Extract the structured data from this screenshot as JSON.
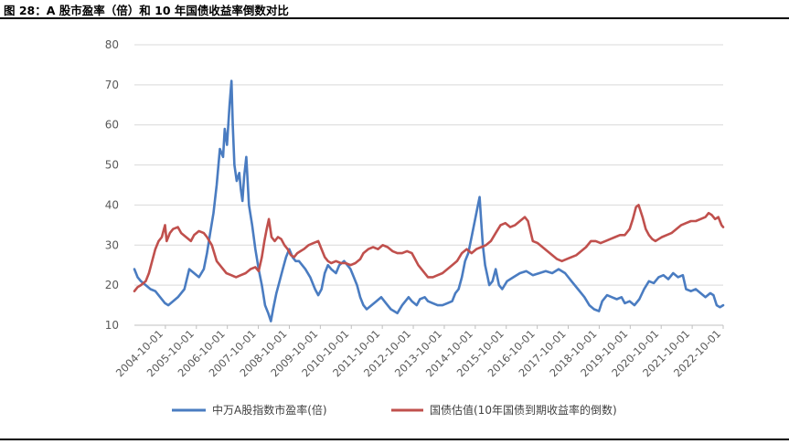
{
  "figure": {
    "title": "图 28：A 股市盈率（倍）和 10 年国债收益率倒数对比"
  },
  "colors": {
    "series1": "#4a7cc1",
    "series2": "#c0504d",
    "grid": "#d9d9d9",
    "axis": "#bfbfbf"
  },
  "chart_data": {
    "type": "line",
    "title": "",
    "xlabel": "",
    "ylabel": "",
    "ylim": [
      10,
      80
    ],
    "yticks": [
      10,
      20,
      30,
      40,
      50,
      60,
      70,
      80
    ],
    "grid": true,
    "legend": "bottom",
    "xticks": [
      "2004-10-01",
      "2005-10-01",
      "2006-10-01",
      "2007-10-01",
      "2008-10-01",
      "2009-10-01",
      "2010-10-01",
      "2011-10-01",
      "2012-10-01",
      "2013-10-01",
      "2014-10-01",
      "2015-10-01",
      "2016-10-01",
      "2017-10-01",
      "2018-10-01",
      "2019-10-01",
      "2020-10-01",
      "2021-10-01",
      "2022-10-01"
    ],
    "xrange": [
      2004.75,
      2023.0
    ],
    "series": [
      {
        "name": "中万A股指数市盈率(倍)",
        "color": "#4a7cc1",
        "points": [
          [
            2004.75,
            24
          ],
          [
            2004.85,
            22
          ],
          [
            2004.95,
            21
          ],
          [
            2005.1,
            20
          ],
          [
            2005.25,
            19
          ],
          [
            2005.4,
            18.5
          ],
          [
            2005.55,
            17
          ],
          [
            2005.7,
            15.5
          ],
          [
            2005.8,
            15
          ],
          [
            2005.95,
            16
          ],
          [
            2006.1,
            17
          ],
          [
            2006.3,
            19
          ],
          [
            2006.45,
            24
          ],
          [
            2006.6,
            23
          ],
          [
            2006.75,
            22
          ],
          [
            2006.9,
            24
          ],
          [
            2007.0,
            28
          ],
          [
            2007.1,
            33
          ],
          [
            2007.2,
            38
          ],
          [
            2007.3,
            45
          ],
          [
            2007.4,
            54
          ],
          [
            2007.5,
            52
          ],
          [
            2007.55,
            59
          ],
          [
            2007.62,
            55
          ],
          [
            2007.7,
            65
          ],
          [
            2007.76,
            71
          ],
          [
            2007.8,
            60
          ],
          [
            2007.85,
            50
          ],
          [
            2007.92,
            46
          ],
          [
            2008.0,
            48
          ],
          [
            2008.05,
            44
          ],
          [
            2008.1,
            41
          ],
          [
            2008.15,
            47
          ],
          [
            2008.22,
            52
          ],
          [
            2008.3,
            40
          ],
          [
            2008.4,
            35
          ],
          [
            2008.5,
            29
          ],
          [
            2008.6,
            24
          ],
          [
            2008.7,
            20
          ],
          [
            2008.8,
            15
          ],
          [
            2008.9,
            13
          ],
          [
            2008.98,
            11
          ],
          [
            2009.05,
            14
          ],
          [
            2009.15,
            18
          ],
          [
            2009.25,
            21
          ],
          [
            2009.35,
            24
          ],
          [
            2009.45,
            27
          ],
          [
            2009.55,
            29
          ],
          [
            2009.65,
            27
          ],
          [
            2009.75,
            26
          ],
          [
            2009.85,
            26
          ],
          [
            2009.95,
            25
          ],
          [
            2010.05,
            24
          ],
          [
            2010.2,
            22
          ],
          [
            2010.35,
            19
          ],
          [
            2010.45,
            17.5
          ],
          [
            2010.55,
            19
          ],
          [
            2010.65,
            23
          ],
          [
            2010.75,
            25
          ],
          [
            2010.85,
            24
          ],
          [
            2011.0,
            23
          ],
          [
            2011.1,
            25
          ],
          [
            2011.25,
            26
          ],
          [
            2011.35,
            25
          ],
          [
            2011.45,
            24
          ],
          [
            2011.55,
            22
          ],
          [
            2011.65,
            20
          ],
          [
            2011.75,
            17
          ],
          [
            2011.85,
            15
          ],
          [
            2011.95,
            14
          ],
          [
            2012.1,
            15
          ],
          [
            2012.25,
            16
          ],
          [
            2012.4,
            17
          ],
          [
            2012.55,
            15.5
          ],
          [
            2012.7,
            14
          ],
          [
            2012.8,
            13.5
          ],
          [
            2012.9,
            13
          ],
          [
            2013.05,
            15
          ],
          [
            2013.15,
            16
          ],
          [
            2013.25,
            17
          ],
          [
            2013.35,
            16
          ],
          [
            2013.5,
            15
          ],
          [
            2013.6,
            16.5
          ],
          [
            2013.75,
            17
          ],
          [
            2013.85,
            16
          ],
          [
            2014.0,
            15.5
          ],
          [
            2014.15,
            15
          ],
          [
            2014.3,
            15
          ],
          [
            2014.45,
            15.5
          ],
          [
            2014.6,
            16
          ],
          [
            2014.7,
            18
          ],
          [
            2014.8,
            19
          ],
          [
            2014.9,
            22
          ],
          [
            2015.0,
            26
          ],
          [
            2015.1,
            28
          ],
          [
            2015.2,
            32
          ],
          [
            2015.3,
            36
          ],
          [
            2015.4,
            40
          ],
          [
            2015.45,
            42
          ],
          [
            2015.5,
            36
          ],
          [
            2015.55,
            30
          ],
          [
            2015.62,
            25
          ],
          [
            2015.7,
            22
          ],
          [
            2015.75,
            20
          ],
          [
            2015.85,
            21
          ],
          [
            2015.95,
            24
          ],
          [
            2016.05,
            20
          ],
          [
            2016.15,
            19
          ],
          [
            2016.3,
            21
          ],
          [
            2016.5,
            22
          ],
          [
            2016.7,
            23
          ],
          [
            2016.9,
            23.5
          ],
          [
            2017.1,
            22.5
          ],
          [
            2017.3,
            23
          ],
          [
            2017.5,
            23.5
          ],
          [
            2017.7,
            23
          ],
          [
            2017.9,
            24
          ],
          [
            2018.1,
            23
          ],
          [
            2018.3,
            21
          ],
          [
            2018.5,
            19
          ],
          [
            2018.7,
            17
          ],
          [
            2018.85,
            15
          ],
          [
            2019.0,
            14
          ],
          [
            2019.15,
            13.5
          ],
          [
            2019.25,
            16
          ],
          [
            2019.4,
            17.5
          ],
          [
            2019.55,
            17
          ],
          [
            2019.7,
            16.5
          ],
          [
            2019.85,
            17
          ],
          [
            2019.95,
            15.5
          ],
          [
            2020.1,
            16
          ],
          [
            2020.25,
            15
          ],
          [
            2020.4,
            16.5
          ],
          [
            2020.55,
            19
          ],
          [
            2020.7,
            21
          ],
          [
            2020.85,
            20.5
          ],
          [
            2021.0,
            22
          ],
          [
            2021.15,
            22.5
          ],
          [
            2021.3,
            21.5
          ],
          [
            2021.45,
            23
          ],
          [
            2021.6,
            22
          ],
          [
            2021.75,
            22.5
          ],
          [
            2021.85,
            19
          ],
          [
            2022.0,
            18.5
          ],
          [
            2022.15,
            19
          ],
          [
            2022.3,
            18
          ],
          [
            2022.45,
            17
          ],
          [
            2022.6,
            18
          ],
          [
            2022.7,
            17.5
          ],
          [
            2022.8,
            15
          ],
          [
            2022.9,
            14.5
          ],
          [
            2023.0,
            15
          ]
        ]
      },
      {
        "name": "国债估值(10年国债到期收益率的倒数)",
        "color": "#c0504d",
        "points": [
          [
            2004.75,
            18.5
          ],
          [
            2004.85,
            19.5
          ],
          [
            2004.95,
            20
          ],
          [
            2005.1,
            21
          ],
          [
            2005.2,
            23
          ],
          [
            2005.3,
            26
          ],
          [
            2005.4,
            29
          ],
          [
            2005.5,
            31
          ],
          [
            2005.6,
            32
          ],
          [
            2005.7,
            35
          ],
          [
            2005.75,
            31
          ],
          [
            2005.85,
            33
          ],
          [
            2005.95,
            34
          ],
          [
            2006.1,
            34.5
          ],
          [
            2006.2,
            33
          ],
          [
            2006.35,
            32
          ],
          [
            2006.5,
            31
          ],
          [
            2006.6,
            32.5
          ],
          [
            2006.75,
            33.5
          ],
          [
            2006.9,
            33
          ],
          [
            2007.0,
            32
          ],
          [
            2007.15,
            30
          ],
          [
            2007.3,
            26
          ],
          [
            2007.45,
            24.5
          ],
          [
            2007.6,
            23
          ],
          [
            2007.75,
            22.5
          ],
          [
            2007.9,
            22
          ],
          [
            2008.05,
            22.5
          ],
          [
            2008.2,
            23
          ],
          [
            2008.35,
            24
          ],
          [
            2008.5,
            24.5
          ],
          [
            2008.6,
            23.5
          ],
          [
            2008.7,
            27
          ],
          [
            2008.78,
            31
          ],
          [
            2008.85,
            34
          ],
          [
            2008.92,
            36.5
          ],
          [
            2009.0,
            32
          ],
          [
            2009.1,
            31
          ],
          [
            2009.2,
            32
          ],
          [
            2009.3,
            31.5
          ],
          [
            2009.4,
            30
          ],
          [
            2009.5,
            29
          ],
          [
            2009.6,
            27.5
          ],
          [
            2009.7,
            27
          ],
          [
            2009.8,
            28
          ],
          [
            2009.9,
            28.5
          ],
          [
            2010.0,
            29
          ],
          [
            2010.15,
            30
          ],
          [
            2010.3,
            30.5
          ],
          [
            2010.45,
            31
          ],
          [
            2010.55,
            29
          ],
          [
            2010.65,
            27
          ],
          [
            2010.75,
            26
          ],
          [
            2010.85,
            25.5
          ],
          [
            2011.0,
            26
          ],
          [
            2011.15,
            25.5
          ],
          [
            2011.3,
            25.5
          ],
          [
            2011.45,
            25
          ],
          [
            2011.6,
            25.5
          ],
          [
            2011.75,
            26.5
          ],
          [
            2011.85,
            28
          ],
          [
            2012.0,
            29
          ],
          [
            2012.15,
            29.5
          ],
          [
            2012.3,
            29
          ],
          [
            2012.45,
            30
          ],
          [
            2012.6,
            29.5
          ],
          [
            2012.75,
            28.5
          ],
          [
            2012.9,
            28
          ],
          [
            2013.05,
            28
          ],
          [
            2013.2,
            28.5
          ],
          [
            2013.35,
            28
          ],
          [
            2013.45,
            26.5
          ],
          [
            2013.55,
            25
          ],
          [
            2013.7,
            23.5
          ],
          [
            2013.85,
            22
          ],
          [
            2014.0,
            22
          ],
          [
            2014.15,
            22.5
          ],
          [
            2014.3,
            23
          ],
          [
            2014.45,
            24
          ],
          [
            2014.6,
            25
          ],
          [
            2014.75,
            26
          ],
          [
            2014.9,
            28
          ],
          [
            2015.05,
            29
          ],
          [
            2015.2,
            28
          ],
          [
            2015.35,
            29
          ],
          [
            2015.5,
            29.5
          ],
          [
            2015.65,
            30
          ],
          [
            2015.8,
            31
          ],
          [
            2015.95,
            33
          ],
          [
            2016.1,
            35
          ],
          [
            2016.25,
            35.5
          ],
          [
            2016.4,
            34.5
          ],
          [
            2016.55,
            35
          ],
          [
            2016.7,
            36
          ],
          [
            2016.85,
            37
          ],
          [
            2016.95,
            36
          ],
          [
            2017.1,
            31
          ],
          [
            2017.25,
            30.5
          ],
          [
            2017.4,
            29.5
          ],
          [
            2017.55,
            28.5
          ],
          [
            2017.7,
            27.5
          ],
          [
            2017.85,
            26.5
          ],
          [
            2018.0,
            26
          ],
          [
            2018.15,
            26.5
          ],
          [
            2018.3,
            27
          ],
          [
            2018.45,
            27.5
          ],
          [
            2018.6,
            28.5
          ],
          [
            2018.75,
            29.5
          ],
          [
            2018.9,
            31
          ],
          [
            2019.05,
            31
          ],
          [
            2019.2,
            30.5
          ],
          [
            2019.35,
            31
          ],
          [
            2019.5,
            31.5
          ],
          [
            2019.65,
            32
          ],
          [
            2019.8,
            32.5
          ],
          [
            2019.95,
            32.5
          ],
          [
            2020.1,
            34
          ],
          [
            2020.2,
            36.5
          ],
          [
            2020.3,
            39.5
          ],
          [
            2020.38,
            40
          ],
          [
            2020.5,
            37
          ],
          [
            2020.6,
            34
          ],
          [
            2020.7,
            32.5
          ],
          [
            2020.8,
            31.5
          ],
          [
            2020.9,
            31
          ],
          [
            2021.0,
            31.5
          ],
          [
            2021.1,
            32
          ],
          [
            2021.25,
            32.5
          ],
          [
            2021.4,
            33
          ],
          [
            2021.55,
            34
          ],
          [
            2021.7,
            35
          ],
          [
            2021.85,
            35.5
          ],
          [
            2022.0,
            36
          ],
          [
            2022.15,
            36
          ],
          [
            2022.3,
            36.5
          ],
          [
            2022.45,
            37
          ],
          [
            2022.55,
            38
          ],
          [
            2022.65,
            37.5
          ],
          [
            2022.75,
            36.5
          ],
          [
            2022.85,
            37
          ],
          [
            2022.95,
            35
          ],
          [
            2023.0,
            34.5
          ]
        ]
      }
    ]
  }
}
